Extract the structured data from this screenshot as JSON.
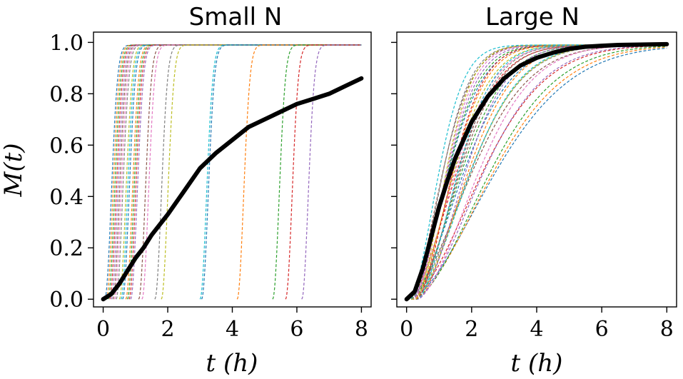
{
  "colors": [
    "#1f77b4",
    "#ff7f0e",
    "#2ca02c",
    "#d62728",
    "#9467bd",
    "#8c564b",
    "#e377c2",
    "#7f7f7f",
    "#bcbd22",
    "#17becf"
  ],
  "mean_color": "#000000",
  "chart_data": [
    {
      "type": "line",
      "title": "Small N",
      "xlabel": "t (h)",
      "ylabel": "M(t)",
      "xlim": [
        -0.3,
        8.3
      ],
      "ylim": [
        -0.03,
        1.04
      ],
      "xticks": [
        0,
        2,
        4,
        6,
        8
      ],
      "xtick_labels": [
        "0",
        "2",
        "4",
        "6",
        "8"
      ],
      "yticks": [
        0.0,
        0.2,
        0.4,
        0.6,
        0.8,
        1.0
      ],
      "ytick_labels": [
        "0.0",
        "0.2",
        "0.4",
        "0.6",
        "0.8",
        "1.0"
      ],
      "show_yticklabels": true,
      "grid": false,
      "legend": "none",
      "sample_shape": "steep",
      "sample_onsets": [
        0.05,
        0.1,
        0.15,
        0.2,
        0.25,
        0.3,
        0.35,
        0.4,
        0.5,
        0.55,
        0.6,
        0.7,
        0.75,
        0.8,
        0.85,
        1.1,
        1.2,
        1.6,
        1.8,
        3.0,
        3.05,
        4.15,
        5.25,
        5.65,
        6.15
      ],
      "samples_final": 0.99,
      "mean_series": {
        "x": [
          0,
          0.25,
          0.5,
          0.75,
          1,
          1.25,
          1.5,
          2,
          2.5,
          3,
          3.5,
          4,
          4.5,
          5,
          5.5,
          6,
          6.5,
          7,
          7.5,
          8
        ],
        "y": [
          0.0,
          0.02,
          0.06,
          0.11,
          0.16,
          0.2,
          0.25,
          0.33,
          0.42,
          0.51,
          0.57,
          0.62,
          0.67,
          0.7,
          0.73,
          0.76,
          0.78,
          0.8,
          0.83,
          0.86
        ]
      }
    },
    {
      "type": "line",
      "title": "Large N",
      "xlabel": "t (h)",
      "ylabel": "",
      "xlim": [
        -0.3,
        8.3
      ],
      "ylim": [
        -0.03,
        1.04
      ],
      "xticks": [
        0,
        2,
        4,
        6,
        8
      ],
      "xtick_labels": [
        "0",
        "2",
        "4",
        "6",
        "8"
      ],
      "yticks": [
        0.0,
        0.2,
        0.4,
        0.6,
        0.8,
        1.0
      ],
      "ytick_labels": [],
      "show_yticklabels": false,
      "grid": false,
      "legend": "none",
      "sample_shape": "smooth",
      "sample_rates": [
        0.3,
        0.32,
        0.34,
        0.36,
        0.38,
        0.4,
        0.42,
        0.44,
        0.45,
        0.46,
        0.48,
        0.5,
        0.52,
        0.54,
        0.55,
        0.56,
        0.58,
        0.6,
        0.62,
        0.64,
        0.66,
        0.68,
        0.7,
        0.72,
        0.75,
        0.78,
        0.8,
        0.83,
        0.86,
        0.9
      ],
      "sample_delays": [
        0.05,
        0.15,
        0.2,
        0.1,
        0.25,
        0.0,
        0.3,
        0.12,
        0.18,
        0.22,
        0.08,
        0.28,
        0.14,
        0.05,
        0.35,
        0.2,
        0.1,
        0.26,
        0.16,
        0.32,
        0.06,
        0.24,
        0.12,
        0.3,
        0.18,
        0.08,
        0.22,
        0.15,
        0.28,
        0.1
      ],
      "samples_final": 0.99,
      "mean_series": {
        "x": [
          0,
          0.25,
          0.5,
          0.75,
          1,
          1.25,
          1.5,
          2,
          2.5,
          3,
          3.5,
          4,
          4.5,
          5,
          5.5,
          6,
          6.5,
          7,
          7.5,
          8
        ],
        "y": [
          0.0,
          0.03,
          0.12,
          0.24,
          0.36,
          0.46,
          0.55,
          0.69,
          0.79,
          0.86,
          0.91,
          0.94,
          0.96,
          0.975,
          0.983,
          0.987,
          0.99,
          0.991,
          0.992,
          0.993
        ]
      }
    }
  ]
}
